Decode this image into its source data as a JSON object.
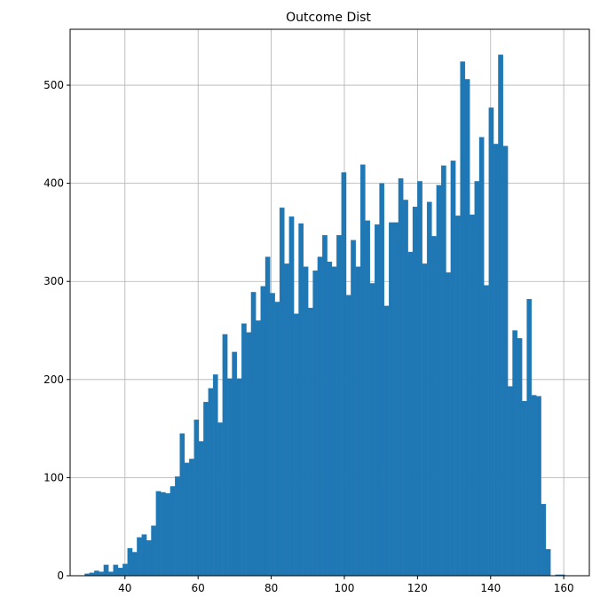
{
  "chart_data": {
    "type": "bar",
    "title": "Outcome Dist",
    "xlabel": "",
    "ylabel": "",
    "xlim": [
      25,
      167
    ],
    "ylim": [
      0,
      557
    ],
    "x_ticks": [
      40,
      60,
      80,
      100,
      120,
      140,
      160
    ],
    "y_ticks": [
      0,
      100,
      200,
      300,
      400,
      500
    ],
    "grid": true,
    "bar_color": "#1f77b4",
    "bin_start": 29,
    "bin_width": 1.3,
    "values": [
      2,
      3,
      5,
      4,
      11,
      4,
      11,
      8,
      12,
      28,
      24,
      39,
      42,
      36,
      51,
      86,
      85,
      84,
      91,
      101,
      145,
      115,
      119,
      159,
      137,
      177,
      191,
      205,
      156,
      246,
      201,
      228,
      201,
      257,
      248,
      289,
      260,
      295,
      325,
      288,
      279,
      375,
      318,
      366,
      267,
      359,
      315,
      273,
      311,
      325,
      347,
      320,
      315,
      347,
      411,
      286,
      342,
      315,
      419,
      362,
      298,
      358,
      400,
      275,
      360,
      360,
      405,
      383,
      330,
      376,
      402,
      318,
      381,
      346,
      398,
      418,
      309,
      423,
      367,
      524,
      506,
      368,
      402,
      447,
      296,
      477,
      440,
      531,
      438,
      193,
      250,
      242,
      178,
      282,
      184,
      183,
      73,
      27,
      0,
      1,
      1
    ]
  }
}
